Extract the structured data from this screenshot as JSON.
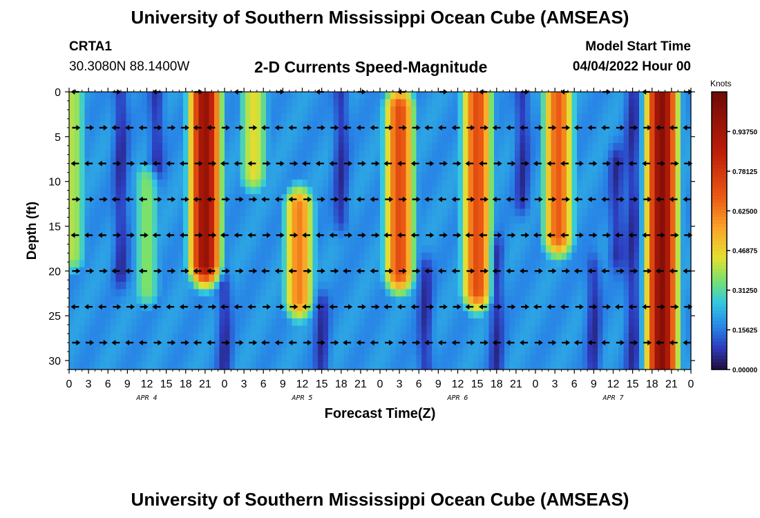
{
  "title": "University of Southern Mississippi Ocean Cube (AMSEAS)",
  "title_repeat": "University of Southern Mississippi Ocean Cube (AMSEAS)",
  "station": "CRTA1",
  "coordinates": "30.3080N  88.1400W",
  "model_start_label": "Model Start Time",
  "model_start_value": "04/04/2022 Hour 00",
  "chart_data": {
    "type": "heatmap",
    "title": "2-D Currents Speed-Magnitude",
    "xlabel": "Forecast Time(Z)",
    "ylabel": "Depth (ft)",
    "ylim": [
      0,
      31
    ],
    "y_ticks": [
      0,
      5,
      10,
      15,
      20,
      25,
      30
    ],
    "x_hours": [
      0,
      3,
      6,
      9,
      12,
      15,
      18,
      21,
      24,
      27,
      30,
      33,
      36,
      39,
      42,
      45,
      48,
      51,
      54,
      57,
      60,
      63,
      66,
      69,
      72,
      75,
      78,
      81,
      84,
      87,
      90,
      93,
      96
    ],
    "x_tick_labels": [
      "0",
      "3",
      "6",
      "9",
      "12",
      "15",
      "18",
      "21",
      "0",
      "3",
      "6",
      "9",
      "12",
      "15",
      "18",
      "21",
      "0",
      "3",
      "6",
      "9",
      "12",
      "15",
      "18",
      "21",
      "0",
      "3",
      "6",
      "9",
      "12",
      "15",
      "18",
      "21",
      "0"
    ],
    "day_labels": [
      {
        "label": "APR 4",
        "hour": 12
      },
      {
        "label": "APR 5",
        "hour": 36
      },
      {
        "label": "APR 6",
        "hour": 60
      },
      {
        "label": "APR 7",
        "hour": 84
      }
    ],
    "colorbar": {
      "label": "Knots",
      "ticks": [
        "0.00000",
        "0.15625",
        "0.31250",
        "0.46875",
        "0.62500",
        "0.78125",
        "0.93750"
      ],
      "range": [
        0,
        1.09375
      ]
    },
    "arrow_depths_ft": [
      0,
      4,
      8,
      12,
      16,
      20,
      24,
      28
    ],
    "speed_features": [
      {
        "hour": 0.5,
        "depth_min": 0,
        "depth_max": 18,
        "speed": 0.4
      },
      {
        "hour": 12,
        "depth_min": 10,
        "depth_max": 22,
        "speed": 0.36
      },
      {
        "hour": 21,
        "depth_min": 0,
        "depth_max": 19,
        "speed": 0.98
      },
      {
        "hour": 28.5,
        "depth_min": 0,
        "depth_max": 9,
        "speed": 0.45
      },
      {
        "hour": 35.5,
        "depth_min": 13,
        "depth_max": 23,
        "speed": 0.62
      },
      {
        "hour": 51,
        "depth_min": 2,
        "depth_max": 20,
        "speed": 0.72
      },
      {
        "hour": 63,
        "depth_min": 0,
        "depth_max": 22,
        "speed": 0.72
      },
      {
        "hour": 75.5,
        "depth_min": 0,
        "depth_max": 16,
        "speed": 0.68
      },
      {
        "hour": 91.5,
        "depth_min": 0,
        "depth_max": 31,
        "speed": 1.02
      }
    ],
    "low_speed_features": [
      {
        "hour": 8,
        "depth_min": 0,
        "depth_max": 20
      },
      {
        "hour": 13.5,
        "depth_min": 0,
        "depth_max": 8
      },
      {
        "hour": 24,
        "depth_min": 22,
        "depth_max": 31
      },
      {
        "hour": 39,
        "depth_min": 24,
        "depth_max": 31
      },
      {
        "hour": 42,
        "depth_min": 0,
        "depth_max": 14
      },
      {
        "hour": 55,
        "depth_min": 20,
        "depth_max": 31
      },
      {
        "hour": 66,
        "depth_min": 18,
        "depth_max": 31
      },
      {
        "hour": 70,
        "depth_min": 0,
        "depth_max": 12
      },
      {
        "hour": 81,
        "depth_min": 20,
        "depth_max": 31
      },
      {
        "hour": 84.5,
        "depth_min": 8,
        "depth_max": 18
      },
      {
        "hour": 87,
        "depth_min": 0,
        "depth_max": 31
      }
    ]
  }
}
